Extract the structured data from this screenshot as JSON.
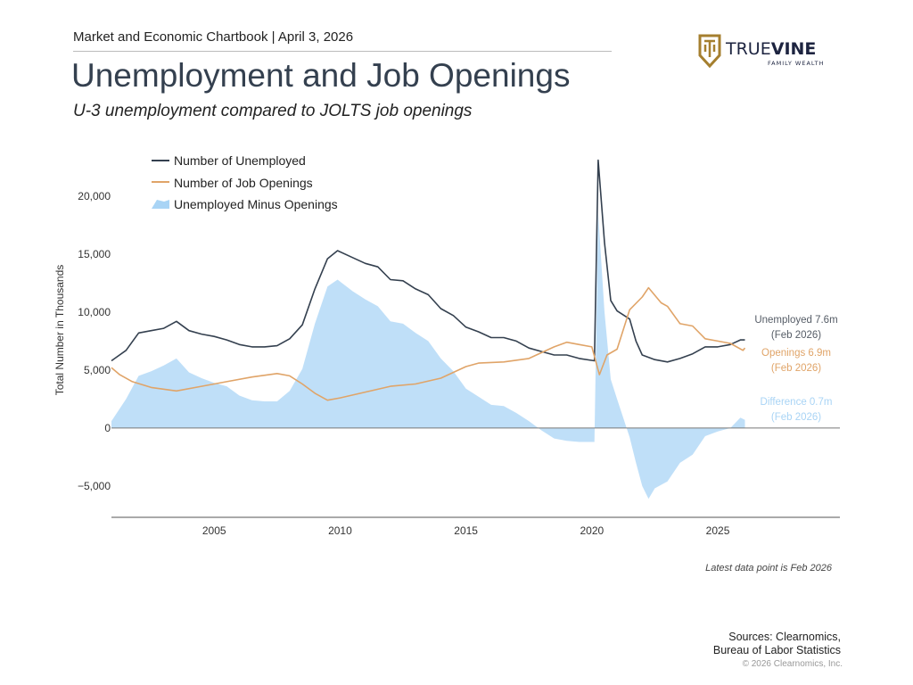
{
  "header": {
    "chartbook": "Market and Economic Chartbook | April 3, 2026"
  },
  "title": "Unemployment and Job Openings",
  "subtitle": "U-3 unemployment compared to JOLTS job openings",
  "logo": {
    "name": "TRUEVINE",
    "tagline": "FAMILY WEALTH",
    "brand_gold": "#a57f2f",
    "brand_navy": "#1d2440"
  },
  "footer": {
    "latest_note": "Latest data point is Feb 2026",
    "sources_line1": "Sources: Clearnomics,",
    "sources_line2": "Bureau of Labor Statistics",
    "copyright": "© 2026 Clearnomics, Inc."
  },
  "chart_data": {
    "type": "line",
    "ylabel": "Total Number in Thousands",
    "xlabel": "",
    "xlim": [
      2000.92,
      2029.85
    ],
    "ylim": [
      -7700,
      23300
    ],
    "x_ticks": [
      2005,
      2010,
      2015,
      2020,
      2025
    ],
    "x_tick_labels": [
      "2005",
      "2010",
      "2015",
      "2020",
      "2025"
    ],
    "y_ticks": [
      -5000,
      0,
      5000,
      10000,
      15000,
      20000
    ],
    "y_tick_labels": [
      "−5,000",
      "0",
      "5,000",
      "10,000",
      "15,000",
      "20,000"
    ],
    "grid": false,
    "legend_position": "top-left",
    "series": [
      {
        "name": "Number of Unemployed",
        "type": "line",
        "color": "#34404f",
        "x": [
          2000.92,
          2001.5,
          2002.0,
          2002.5,
          2003.0,
          2003.5,
          2004.0,
          2004.5,
          2005.0,
          2005.5,
          2006.0,
          2006.5,
          2007.0,
          2007.5,
          2008.0,
          2008.5,
          2009.0,
          2009.5,
          2009.9,
          2010.5,
          2011.0,
          2011.5,
          2012.0,
          2012.5,
          2013.0,
          2013.5,
          2014.0,
          2014.5,
          2015.0,
          2015.5,
          2016.0,
          2016.5,
          2017.0,
          2017.5,
          2018.0,
          2018.5,
          2019.0,
          2019.5,
          2020.1,
          2020.25,
          2020.5,
          2020.75,
          2021.0,
          2021.5,
          2021.75,
          2022.0,
          2022.5,
          2023.0,
          2023.5,
          2024.0,
          2024.5,
          2025.0,
          2025.5,
          2025.9,
          2026.08
        ],
        "values": [
          5800,
          6700,
          8200,
          8400,
          8600,
          9200,
          8400,
          8100,
          7900,
          7600,
          7200,
          7000,
          7000,
          7100,
          7700,
          8900,
          12000,
          14600,
          15300,
          14700,
          14200,
          13900,
          12800,
          12700,
          12000,
          11500,
          10300,
          9700,
          8700,
          8300,
          7800,
          7800,
          7500,
          6900,
          6600,
          6300,
          6300,
          6000,
          5800,
          23100,
          16000,
          11000,
          10100,
          9400,
          7500,
          6300,
          5900,
          5700,
          6000,
          6400,
          7000,
          7000,
          7200,
          7600,
          7600
        ]
      },
      {
        "name": "Number of Job Openings",
        "type": "line",
        "color": "#e0a468",
        "x": [
          2000.92,
          2001.25,
          2001.75,
          2002.5,
          2003.5,
          2004.5,
          2005.5,
          2006.5,
          2007.5,
          2008.0,
          2008.5,
          2009.0,
          2009.5,
          2010.0,
          2011.0,
          2012.0,
          2013.0,
          2014.0,
          2014.5,
          2015.0,
          2015.5,
          2016.5,
          2017.5,
          2018.5,
          2019.0,
          2019.5,
          2020.0,
          2020.3,
          2020.6,
          2021.0,
          2021.5,
          2022.0,
          2022.25,
          2022.75,
          2023.0,
          2023.5,
          2024.0,
          2024.5,
          2025.0,
          2025.5,
          2026.0,
          2026.08
        ],
        "values": [
          5200,
          4600,
          4000,
          3500,
          3200,
          3600,
          4000,
          4400,
          4700,
          4500,
          3800,
          3000,
          2400,
          2600,
          3100,
          3600,
          3800,
          4300,
          4800,
          5300,
          5600,
          5700,
          6000,
          7000,
          7400,
          7200,
          7000,
          4600,
          6300,
          6800,
          10200,
          11300,
          12100,
          10800,
          10500,
          9000,
          8800,
          7700,
          7500,
          7300,
          6700,
          6900
        ]
      },
      {
        "name": "Unemployed Minus Openings",
        "type": "area",
        "color": "#a9d4f5",
        "x": [
          2000.92,
          2001.5,
          2002.0,
          2002.5,
          2003.0,
          2003.5,
          2004.0,
          2004.5,
          2005.0,
          2005.5,
          2006.0,
          2006.5,
          2007.0,
          2007.5,
          2008.0,
          2008.5,
          2009.0,
          2009.5,
          2009.9,
          2010.5,
          2011.0,
          2011.5,
          2012.0,
          2012.5,
          2013.0,
          2013.5,
          2014.0,
          2014.5,
          2015.0,
          2015.5,
          2016.0,
          2016.5,
          2017.0,
          2017.5,
          2018.0,
          2018.5,
          2019.0,
          2019.5,
          2020.1,
          2020.25,
          2020.5,
          2020.75,
          2021.0,
          2021.5,
          2021.75,
          2022.0,
          2022.25,
          2022.5,
          2023.0,
          2023.5,
          2024.0,
          2024.5,
          2025.0,
          2025.5,
          2025.9,
          2026.08
        ],
        "values": [
          600,
          2500,
          4500,
          4900,
          5400,
          6000,
          4800,
          4300,
          3900,
          3600,
          2800,
          2400,
          2300,
          2300,
          3200,
          5100,
          9000,
          12200,
          12800,
          11800,
          11100,
          10500,
          9200,
          9000,
          8200,
          7500,
          6000,
          4900,
          3400,
          2700,
          2000,
          1900,
          1300,
          600,
          -200,
          -900,
          -1100,
          -1200,
          -1200,
          18500,
          10000,
          4200,
          2500,
          -800,
          -3000,
          -5000,
          -6100,
          -5200,
          -4600,
          -3000,
          -2300,
          -700,
          -300,
          0,
          900,
          700
        ]
      }
    ],
    "annotations": [
      {
        "line1": "Unemployed 7.6m",
        "line2": "(Feb 2026)",
        "color": "#555c66"
      },
      {
        "line1": "Openings 6.9m",
        "line2": "(Feb 2026)",
        "color": "#e0a468"
      },
      {
        "line1": "Difference 0.7m",
        "line2": "(Feb 2026)",
        "color": "#a9d4f5"
      }
    ]
  }
}
